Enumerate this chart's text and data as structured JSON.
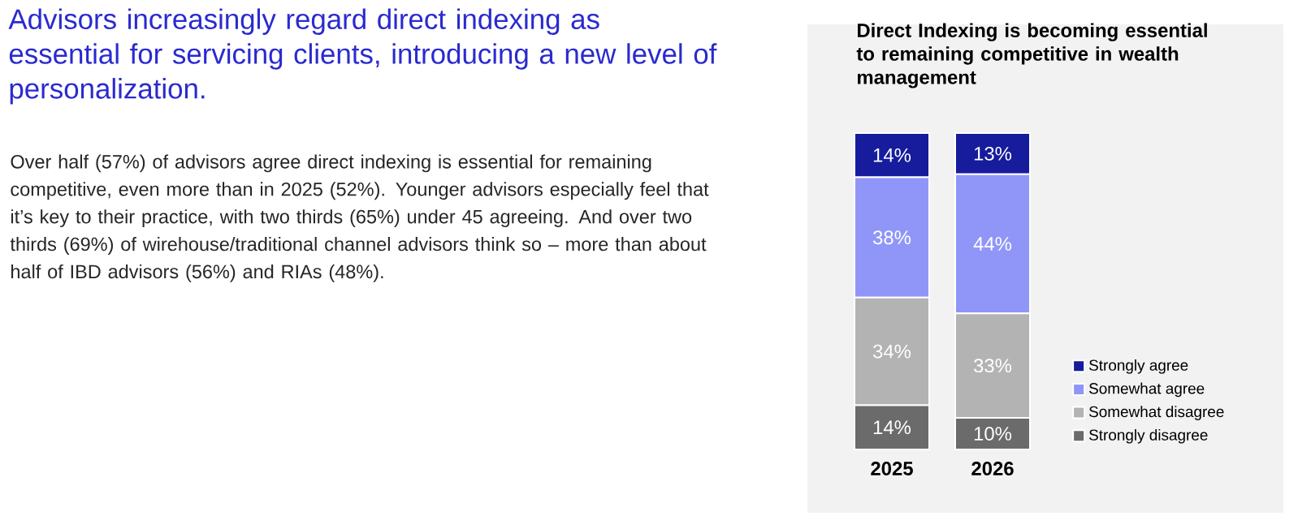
{
  "chart_data": {
    "type": "bar",
    "stacked": true,
    "title": "Direct Indexing is becoming essential to remaining competitive in wealth management",
    "annotations": [
      "Advisors increasingly regard direct indexing as essential for servicing clients, introducing a new level of personalization.",
      "Over half (57%) of advisors agree direct indexing is essential for remaining competitive, even more than in 2025 (52%). Younger advisors especially feel that it’s key to their practice, with two thirds (65%) under 45 agreeing. And over two thirds (69%) of wirehouse/traditional channel advisors think so – more than about half of IBD advisors (56%) and RIAs (48%)."
    ],
    "categories": [
      "2025",
      "2026"
    ],
    "series": [
      {
        "name": "Strongly disagree",
        "color": "#6b6b6b",
        "values": [
          14,
          10
        ],
        "value_labels": [
          "14%",
          "10%"
        ]
      },
      {
        "name": "Somewhat disagree",
        "color": "#b3b3b3",
        "values": [
          34,
          33
        ],
        "value_labels": [
          "34%",
          "33%"
        ]
      },
      {
        "name": "Somewhat agree",
        "color": "#9096f8",
        "values": [
          38,
          44
        ],
        "value_labels": [
          "38%",
          "44%"
        ]
      },
      {
        "name": "Strongly agree",
        "color": "#161c9c",
        "values": [
          14,
          13
        ],
        "value_labels": [
          "14%",
          "13%"
        ]
      }
    ],
    "legend": "right"
  }
}
